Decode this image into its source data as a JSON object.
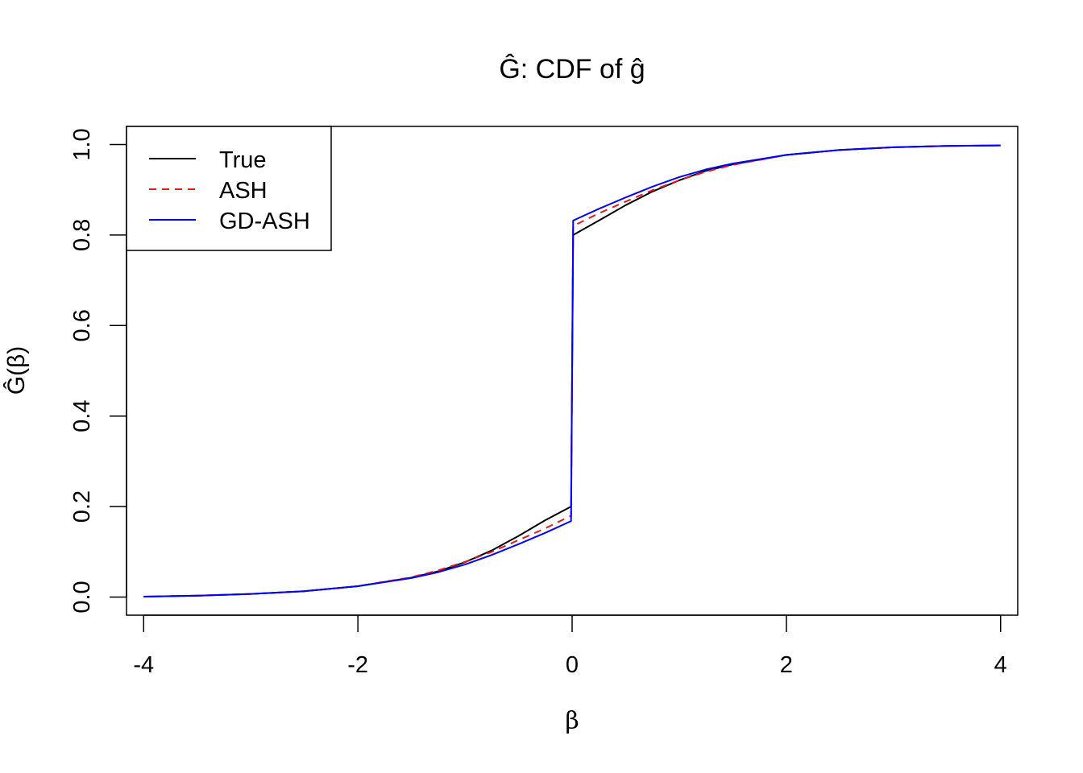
{
  "chart_data": {
    "type": "line",
    "title": "Ĝ: CDF of ĝ",
    "xlabel": "β",
    "ylabel": "Ĝ(β)",
    "xlim": [
      -4.16,
      4.16
    ],
    "ylim": [
      -0.04,
      1.04
    ],
    "xticks": [
      -4,
      -2,
      0,
      2,
      4
    ],
    "xtick_labels": [
      "-4",
      "-2",
      "0",
      "2",
      "4"
    ],
    "yticks": [
      0.0,
      0.2,
      0.4,
      0.6,
      0.8,
      1.0
    ],
    "ytick_labels": [
      "0.0",
      "0.2",
      "0.4",
      "0.6",
      "0.8",
      "1.0"
    ],
    "grid": false,
    "legend_position": "top-left",
    "series": [
      {
        "name": "True",
        "color": "#000000",
        "dash": "solid",
        "x": [
          -4,
          -3.5,
          -3,
          -2.5,
          -2,
          -1.5,
          -1.25,
          -1,
          -0.75,
          -0.5,
          -0.25,
          -0.01,
          0.01,
          0.25,
          0.5,
          0.75,
          1,
          1.25,
          1.5,
          2,
          2.5,
          3,
          3.5,
          4
        ],
        "y": [
          0.001,
          0.003,
          0.007,
          0.013,
          0.024,
          0.043,
          0.057,
          0.077,
          0.103,
          0.135,
          0.17,
          0.2,
          0.8,
          0.832,
          0.866,
          0.896,
          0.921,
          0.942,
          0.956,
          0.977,
          0.988,
          0.994,
          0.997,
          0.998
        ]
      },
      {
        "name": "ASH",
        "color": "#e41a1c",
        "dash": "dashed",
        "x": [
          -4,
          -3.5,
          -3,
          -2.5,
          -2,
          -1.5,
          -1.25,
          -1,
          -0.75,
          -0.5,
          -0.25,
          -0.01,
          0.01,
          0.25,
          0.5,
          0.75,
          1,
          1.25,
          1.5,
          2,
          2.5,
          3,
          3.5,
          4
        ],
        "y": [
          0.001,
          0.003,
          0.007,
          0.013,
          0.024,
          0.044,
          0.059,
          0.078,
          0.1,
          0.126,
          0.152,
          0.18,
          0.82,
          0.848,
          0.874,
          0.899,
          0.921,
          0.94,
          0.955,
          0.977,
          0.988,
          0.994,
          0.997,
          0.998
        ]
      },
      {
        "name": "GD-ASH",
        "color": "#0000ff",
        "dash": "solid",
        "x": [
          -4,
          -3.5,
          -3,
          -2.5,
          -2,
          -1.5,
          -1.25,
          -1,
          -0.75,
          -0.5,
          -0.25,
          -0.01,
          0.01,
          0.25,
          0.5,
          0.75,
          1,
          1.25,
          1.5,
          2,
          2.5,
          3,
          3.5,
          4
        ],
        "y": [
          0.001,
          0.003,
          0.007,
          0.013,
          0.024,
          0.042,
          0.055,
          0.072,
          0.093,
          0.117,
          0.142,
          0.168,
          0.832,
          0.858,
          0.883,
          0.907,
          0.928,
          0.945,
          0.958,
          0.977,
          0.988,
          0.994,
          0.997,
          0.998
        ]
      }
    ]
  }
}
